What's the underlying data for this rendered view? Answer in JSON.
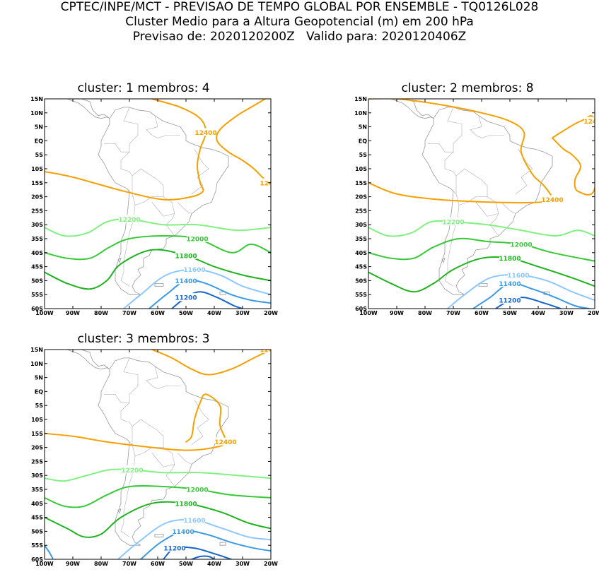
{
  "header": {
    "line1": "CPTEC/INPE/MCT - PREVISAO DE TEMPO GLOBAL POR ENSEMBLE - TQ0126L028",
    "line2": "Cluster Medio para a Altura Geopotencial (m) em 200 hPa",
    "line3": "Previsao de: 2020120200Z   Valido para: 2020120406Z"
  },
  "axes": {
    "lat_labels": [
      "15N",
      "10N",
      "5N",
      "EQ",
      "5S",
      "10S",
      "15S",
      "20S",
      "25S",
      "30S",
      "35S",
      "40S",
      "45S",
      "50S",
      "55S",
      "60S"
    ],
    "lon_labels": [
      "100W",
      "90W",
      "80W",
      "70W",
      "60W",
      "50W",
      "40W",
      "30W",
      "20W"
    ]
  },
  "colors": {
    "12400": "#f5a000",
    "12200": "#80f080",
    "12000": "#37c937",
    "11800": "#1eb31e",
    "11600": "#8cc7ff",
    "11400": "#3a9ae8",
    "11200": "#1765cc",
    "land": "#9a9a9a"
  },
  "chart_data": [
    {
      "type": "contour",
      "title": "cluster: 1   membros: 4",
      "cluster": 1,
      "membros": 4,
      "xlim_lon": [
        -100,
        -20
      ],
      "ylim_lat": [
        -60,
        15
      ],
      "contours": [
        {
          "level": 12400,
          "label": "12400",
          "points": [
            [
              -62,
              15
            ],
            [
              -52,
              12
            ],
            [
              -45,
              8
            ],
            [
              -43,
              3
            ],
            [
              -45,
              -3
            ],
            [
              -46,
              -9
            ],
            [
              -45,
              -15
            ],
            [
              -44,
              -18
            ],
            [
              -48,
              -20
            ],
            [
              -58,
              -21
            ],
            [
              -72,
              -18
            ],
            [
              -90,
              -13
            ],
            [
              -100,
              -11
            ]
          ]
        },
        {
          "level": 12400,
          "label": "12400",
          "points": [
            [
              -22,
              15
            ],
            [
              -27,
              12
            ],
            [
              -32,
              9
            ],
            [
              -38,
              4
            ],
            [
              -39,
              0
            ],
            [
              -35,
              -4
            ],
            [
              -30,
              -7
            ],
            [
              -26,
              -10
            ],
            [
              -22,
              -14
            ],
            [
              -20,
              -15
            ]
          ]
        },
        {
          "level": 12200,
          "label": "12200",
          "points": [
            [
              -100,
              -31
            ],
            [
              -93,
              -34
            ],
            [
              -85,
              -33
            ],
            [
              -78,
              -29
            ],
            [
              -70,
              -28
            ],
            [
              -58,
              -30
            ],
            [
              -46,
              -30
            ],
            [
              -32,
              -32
            ],
            [
              -20,
              -31
            ]
          ]
        },
        {
          "level": 12000,
          "label": "12000",
          "points": [
            [
              -100,
              -40
            ],
            [
              -92,
              -42
            ],
            [
              -84,
              -42
            ],
            [
              -77,
              -38
            ],
            [
              -70,
              -35
            ],
            [
              -58,
              -34
            ],
            [
              -46,
              -35
            ],
            [
              -34,
              -40
            ],
            [
              -27,
              -37
            ],
            [
              -20,
              -40
            ]
          ]
        },
        {
          "level": 11800,
          "label": "11800",
          "points": [
            [
              -100,
              -47
            ],
            [
              -92,
              -51
            ],
            [
              -84,
              -53
            ],
            [
              -78,
              -50
            ],
            [
              -73,
              -44
            ],
            [
              -62,
              -39
            ],
            [
              -50,
              -41
            ],
            [
              -40,
              -45
            ],
            [
              -30,
              -48
            ],
            [
              -20,
              -50
            ]
          ]
        },
        {
          "level": 11600,
          "label": "11600",
          "points": [
            [
              -72,
              -60
            ],
            [
              -66,
              -55
            ],
            [
              -57,
              -48
            ],
            [
              -47,
              -46
            ],
            [
              -38,
              -48
            ],
            [
              -30,
              -52
            ],
            [
              -20,
              -55
            ]
          ]
        },
        {
          "level": 11400,
          "label": "11400",
          "points": [
            [
              -63,
              -60
            ],
            [
              -57,
              -55
            ],
            [
              -50,
              -50
            ],
            [
              -43,
              -51
            ],
            [
              -34,
              -55
            ],
            [
              -27,
              -57
            ],
            [
              -20,
              -58
            ]
          ]
        },
        {
          "level": 11200,
          "label": "11200",
          "points": [
            [
              -55,
              -60
            ],
            [
              -50,
              -56
            ],
            [
              -45,
              -54
            ],
            [
              -39,
              -56
            ],
            [
              -33,
              -59
            ],
            [
              -30,
              -60
            ]
          ]
        }
      ]
    },
    {
      "type": "contour",
      "title": "cluster: 2   membros: 8",
      "cluster": 2,
      "membros": 8,
      "xlim_lon": [
        -100,
        -20
      ],
      "ylim_lat": [
        -60,
        15
      ],
      "contours": [
        {
          "level": 12400,
          "label": "12400",
          "points": [
            [
              -100,
              15
            ],
            [
              -90,
              15
            ],
            [
              -75,
              13
            ],
            [
              -60,
              10
            ],
            [
              -50,
              7
            ],
            [
              -45,
              3
            ],
            [
              -46,
              -4
            ],
            [
              -42,
              -12
            ],
            [
              -38,
              -16
            ],
            [
              -35,
              -21
            ],
            [
              -40,
              -22
            ],
            [
              -55,
              -22
            ],
            [
              -75,
              -21
            ],
            [
              -90,
              -19
            ],
            [
              -100,
              -15
            ]
          ]
        },
        {
          "level": 12400,
          "label": "12400",
          "points": [
            [
              -35,
              1
            ],
            [
              -32,
              3
            ],
            [
              -25,
              7
            ],
            [
              -20,
              7
            ],
            [
              -20,
              -17
            ],
            [
              -26,
              -18
            ],
            [
              -27,
              -14
            ],
            [
              -25,
              -9
            ],
            [
              -28,
              -5
            ],
            [
              -31,
              -3
            ],
            [
              -35,
              1
            ]
          ]
        },
        {
          "level": 12200,
          "label": "12200",
          "points": [
            [
              -100,
              -31
            ],
            [
              -93,
              -34
            ],
            [
              -85,
              -33
            ],
            [
              -78,
              -29
            ],
            [
              -70,
              -29
            ],
            [
              -58,
              -30
            ],
            [
              -46,
              -32
            ],
            [
              -34,
              -34
            ],
            [
              -26,
              -32
            ],
            [
              -20,
              -34
            ]
          ]
        },
        {
          "level": 12000,
          "label": "12000",
          "points": [
            [
              -100,
              -40
            ],
            [
              -92,
              -42
            ],
            [
              -84,
              -42
            ],
            [
              -77,
              -38
            ],
            [
              -68,
              -35
            ],
            [
              -58,
              -36
            ],
            [
              -46,
              -37
            ],
            [
              -35,
              -40
            ],
            [
              -20,
              -43
            ]
          ]
        },
        {
          "level": 11800,
          "label": "11800",
          "points": [
            [
              -100,
              -47
            ],
            [
              -92,
              -51
            ],
            [
              -84,
              -54
            ],
            [
              -77,
              -51
            ],
            [
              -70,
              -46
            ],
            [
              -60,
              -42
            ],
            [
              -50,
              -42
            ],
            [
              -40,
              -45
            ],
            [
              -28,
              -49
            ],
            [
              -20,
              -52
            ]
          ]
        },
        {
          "level": 11600,
          "label": "11600",
          "points": [
            [
              -72,
              -60
            ],
            [
              -66,
              -55
            ],
            [
              -57,
              -49
            ],
            [
              -47,
              -48
            ],
            [
              -37,
              -50
            ],
            [
              -28,
              -54
            ],
            [
              -20,
              -57
            ]
          ]
        },
        {
          "level": 11400,
          "label": "11400",
          "points": [
            [
              -63,
              -60
            ],
            [
              -57,
              -56
            ],
            [
              -50,
              -51
            ],
            [
              -42,
              -53
            ],
            [
              -34,
              -56
            ],
            [
              -27,
              -59
            ],
            [
              -22,
              -60
            ]
          ]
        },
        {
          "level": 11200,
          "label": "11200",
          "points": [
            [
              -55,
              -60
            ],
            [
              -50,
              -57
            ],
            [
              -45,
              -56
            ],
            [
              -38,
              -58
            ],
            [
              -32,
              -60
            ]
          ]
        }
      ]
    },
    {
      "type": "contour",
      "title": "cluster: 3   membros: 3",
      "cluster": 3,
      "membros": 3,
      "xlim_lon": [
        -100,
        -20
      ],
      "ylim_lat": [
        -60,
        15
      ],
      "contours": [
        {
          "level": 12400,
          "label": "12400",
          "points": [
            [
              -62,
              15
            ],
            [
              -55,
              12
            ],
            [
              -48,
              8
            ],
            [
              -42,
              6
            ],
            [
              -34,
              8
            ],
            [
              -26,
              12
            ],
            [
              -20,
              15
            ]
          ]
        },
        {
          "level": 12400,
          "label": "12400",
          "points": [
            [
              -100,
              -15
            ],
            [
              -90,
              -16
            ],
            [
              -78,
              -18
            ],
            [
              -62,
              -20
            ],
            [
              -50,
              -21
            ],
            [
              -40,
              -20
            ],
            [
              -36,
              -18
            ],
            [
              -38,
              -12
            ],
            [
              -38,
              -5
            ],
            [
              -43,
              -1
            ],
            [
              -45,
              -4
            ],
            [
              -47,
              -10
            ],
            [
              -48,
              -16
            ],
            [
              -50,
              -18
            ]
          ]
        },
        {
          "level": 12200,
          "label": "12200",
          "points": [
            [
              -100,
              -31
            ],
            [
              -93,
              -32
            ],
            [
              -85,
              -30
            ],
            [
              -77,
              -28
            ],
            [
              -69,
              -28
            ],
            [
              -58,
              -29
            ],
            [
              -45,
              -29
            ],
            [
              -32,
              -30
            ],
            [
              -20,
              -31
            ]
          ]
        },
        {
          "level": 12000,
          "label": "12000",
          "points": [
            [
              -100,
              -38
            ],
            [
              -93,
              -41
            ],
            [
              -86,
              -41
            ],
            [
              -78,
              -37
            ],
            [
              -70,
              -34
            ],
            [
              -58,
              -34
            ],
            [
              -46,
              -35
            ],
            [
              -34,
              -37
            ],
            [
              -20,
              -38
            ]
          ]
        },
        {
          "level": 11800,
          "label": "11800",
          "points": [
            [
              -100,
              -45
            ],
            [
              -92,
              -49
            ],
            [
              -86,
              -52
            ],
            [
              -80,
              -51
            ],
            [
              -73,
              -45
            ],
            [
              -62,
              -40
            ],
            [
              -50,
              -40
            ],
            [
              -38,
              -43
            ],
            [
              -28,
              -47
            ],
            [
              -20,
              -49
            ]
          ]
        },
        {
          "level": 11600,
          "label": "11600",
          "points": [
            [
              -74,
              -60
            ],
            [
              -67,
              -54
            ],
            [
              -57,
              -47
            ],
            [
              -47,
              -46
            ],
            [
              -37,
              -49
            ],
            [
              -28,
              -52
            ],
            [
              -20,
              -53
            ]
          ]
        },
        {
          "level": 11400,
          "label": "11400",
          "points": [
            [
              -66,
              -60
            ],
            [
              -59,
              -54
            ],
            [
              -51,
              -50
            ],
            [
              -43,
              -51
            ],
            [
              -34,
              -54
            ],
            [
              -26,
              -56
            ],
            [
              -20,
              -57
            ]
          ]
        },
        {
          "level": 11200,
          "label": "11200",
          "points": [
            [
              -58,
              -60
            ],
            [
              -54,
              -56
            ],
            [
              -47,
              -56
            ],
            [
              -40,
              -58
            ],
            [
              -34,
              -60
            ]
          ]
        },
        {
          "level": 11400,
          "label": "",
          "points": [
            [
              -100,
              -55
            ],
            [
              -98,
              -58
            ],
            [
              -97,
              -60
            ]
          ]
        },
        {
          "level": 11200,
          "label": "",
          "points": [
            [
              -48,
              -60
            ],
            [
              -45,
              -59
            ],
            [
              -42,
              -59
            ],
            [
              -40,
              -60
            ]
          ]
        }
      ]
    }
  ]
}
